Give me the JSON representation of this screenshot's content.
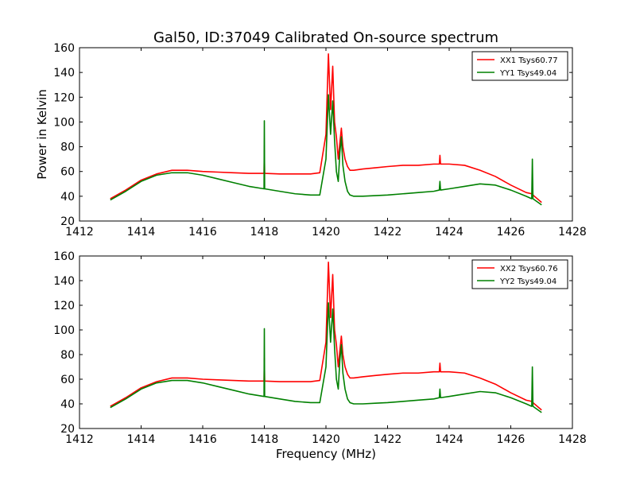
{
  "chart_data": {
    "type": "line",
    "title": "Gal50, ID:37049 Calibrated On-source spectrum",
    "xlabel": "Frequency (MHz)",
    "ylabel": "Power in Kelvin",
    "colors": {
      "xx": "#ff0000",
      "yy": "#008000"
    },
    "panels": [
      {
        "xlim": [
          1412,
          1428
        ],
        "ylim": [
          20,
          160
        ],
        "xticks": [
          1412,
          1414,
          1416,
          1418,
          1420,
          1422,
          1424,
          1426,
          1428
        ],
        "yticks": [
          20,
          40,
          60,
          80,
          100,
          120,
          140,
          160
        ],
        "legend_position": "top-right",
        "series": [
          {
            "name": "XX1 Tsys60.77",
            "color_key": "xx",
            "x": [
              1413.0,
              1413.5,
              1414.0,
              1414.5,
              1415.0,
              1415.5,
              1416.0,
              1416.5,
              1417.0,
              1417.5,
              1417.99,
              1418.0,
              1418.01,
              1418.5,
              1419.0,
              1419.5,
              1419.8,
              1420.0,
              1420.08,
              1420.15,
              1420.22,
              1420.28,
              1420.34,
              1420.4,
              1420.45,
              1420.5,
              1420.55,
              1420.62,
              1420.7,
              1420.78,
              1420.9,
              1421.2,
              1421.6,
              1422.0,
              1422.5,
              1423.0,
              1423.5,
              1423.68,
              1423.7,
              1423.72,
              1424.0,
              1424.5,
              1425.0,
              1425.5,
              1426.0,
              1426.5,
              1426.68,
              1426.7,
              1426.72,
              1427.0
            ],
            "y": [
              38,
              45,
              53,
              58,
              61,
              61,
              60,
              59.5,
              59,
              58.5,
              58.5,
              77,
              58.5,
              58,
              58,
              58,
              59,
              90,
              155,
              110,
              145,
              100,
              88,
              70,
              83,
              95,
              80,
              70,
              64,
              61,
              61,
              62,
              63,
              64,
              65,
              65,
              66,
              66,
              73,
              66,
              66,
              65,
              61,
              56,
              49,
              43,
              42,
              44,
              41,
              35
            ]
          },
          {
            "name": "YY1 Tsys49.04",
            "color_key": "yy",
            "x": [
              1413.0,
              1413.5,
              1414.0,
              1414.5,
              1415.0,
              1415.5,
              1416.0,
              1416.5,
              1417.0,
              1417.5,
              1417.99,
              1418.0,
              1418.01,
              1418.5,
              1419.0,
              1419.5,
              1419.8,
              1420.0,
              1420.08,
              1420.15,
              1420.22,
              1420.28,
              1420.34,
              1420.4,
              1420.45,
              1420.5,
              1420.55,
              1420.62,
              1420.7,
              1420.78,
              1420.9,
              1421.2,
              1421.6,
              1422.0,
              1422.5,
              1423.0,
              1423.5,
              1423.68,
              1423.7,
              1423.72,
              1424.0,
              1424.5,
              1425.0,
              1425.5,
              1426.0,
              1426.5,
              1426.68,
              1426.7,
              1426.72,
              1427.0
            ],
            "y": [
              37,
              44,
              52,
              57,
              59,
              59,
              57,
              54,
              51,
              48,
              46,
              101,
              46,
              44,
              42,
              41,
              41,
              70,
              122,
              90,
              117,
              85,
              60,
              52,
              75,
              88,
              65,
              52,
              44,
              41,
              40,
              40,
              40.5,
              41,
              42,
              43,
              44,
              45,
              52,
              45,
              46,
              48,
              50,
              49,
              45,
              40,
              38,
              70,
              38,
              33
            ]
          }
        ]
      },
      {
        "xlim": [
          1412,
          1428
        ],
        "ylim": [
          20,
          160
        ],
        "xticks": [
          1412,
          1414,
          1416,
          1418,
          1420,
          1422,
          1424,
          1426,
          1428
        ],
        "yticks": [
          20,
          40,
          60,
          80,
          100,
          120,
          140,
          160
        ],
        "legend_position": "top-right",
        "series": [
          {
            "name": "XX2 Tsys60.76",
            "color_key": "xx",
            "x": [
              1413.0,
              1413.5,
              1414.0,
              1414.5,
              1415.0,
              1415.5,
              1416.0,
              1416.5,
              1417.0,
              1417.5,
              1417.99,
              1418.0,
              1418.01,
              1418.5,
              1419.0,
              1419.5,
              1419.8,
              1420.0,
              1420.08,
              1420.15,
              1420.22,
              1420.28,
              1420.34,
              1420.4,
              1420.45,
              1420.5,
              1420.55,
              1420.62,
              1420.7,
              1420.78,
              1420.9,
              1421.2,
              1421.6,
              1422.0,
              1422.5,
              1423.0,
              1423.5,
              1423.68,
              1423.7,
              1423.72,
              1424.0,
              1424.5,
              1425.0,
              1425.5,
              1426.0,
              1426.5,
              1426.68,
              1426.7,
              1426.72,
              1427.0
            ],
            "y": [
              38,
              45,
              53,
              58,
              61,
              61,
              60,
              59.5,
              59,
              58.5,
              58.5,
              77,
              58.5,
              58,
              58,
              58,
              59,
              90,
              155,
              110,
              145,
              100,
              88,
              70,
              83,
              95,
              80,
              70,
              64,
              61,
              61,
              62,
              63,
              64,
              65,
              65,
              66,
              66,
              73,
              66,
              66,
              65,
              61,
              56,
              49,
              43,
              42,
              44,
              41,
              35
            ]
          },
          {
            "name": "YY2 Tsys49.04",
            "color_key": "yy",
            "x": [
              1413.0,
              1413.5,
              1414.0,
              1414.5,
              1415.0,
              1415.5,
              1416.0,
              1416.5,
              1417.0,
              1417.5,
              1417.99,
              1418.0,
              1418.01,
              1418.5,
              1419.0,
              1419.5,
              1419.8,
              1420.0,
              1420.08,
              1420.15,
              1420.22,
              1420.28,
              1420.34,
              1420.4,
              1420.45,
              1420.5,
              1420.55,
              1420.62,
              1420.7,
              1420.78,
              1420.9,
              1421.2,
              1421.6,
              1422.0,
              1422.5,
              1423.0,
              1423.5,
              1423.68,
              1423.7,
              1423.72,
              1424.0,
              1424.5,
              1425.0,
              1425.5,
              1426.0,
              1426.5,
              1426.68,
              1426.7,
              1426.72,
              1427.0
            ],
            "y": [
              37,
              44,
              52,
              57,
              59,
              59,
              57,
              54,
              51,
              48,
              46,
              101,
              46,
              44,
              42,
              41,
              41,
              70,
              122,
              90,
              117,
              85,
              60,
              52,
              75,
              88,
              65,
              52,
              44,
              41,
              40,
              40,
              40.5,
              41,
              42,
              43,
              44,
              45,
              52,
              45,
              46,
              48,
              50,
              49,
              45,
              40,
              38,
              70,
              38,
              33
            ]
          }
        ]
      }
    ]
  }
}
